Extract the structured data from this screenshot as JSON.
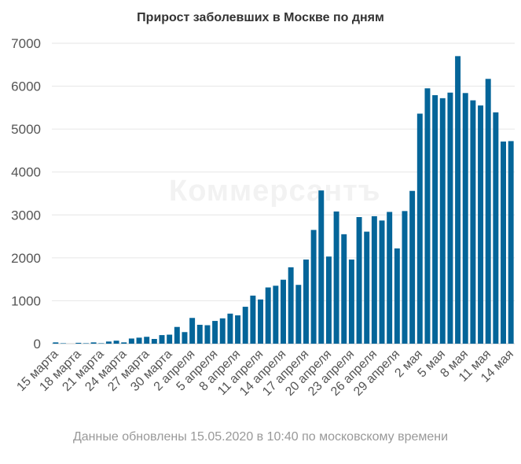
{
  "chart_data": {
    "type": "bar",
    "title": "Прирост заболевших в Москве по дням",
    "footnote": "Данные обновлены 15.05.2020 в 10:40 по московскому времени",
    "watermark": "Коммерсантъ",
    "bar_color": "#046599",
    "ylim": [
      0,
      7000
    ],
    "yticks": [
      0,
      1000,
      2000,
      3000,
      4000,
      5000,
      6000,
      7000
    ],
    "grid": true,
    "x": [
      "15 марта",
      "16 марта",
      "17 марта",
      "18 марта",
      "19 марта",
      "20 марта",
      "21 марта",
      "22 марта",
      "23 марта",
      "24 марта",
      "25 марта",
      "26 марта",
      "27 марта",
      "28 марта",
      "29 марта",
      "30 марта",
      "31 марта",
      "1 апреля",
      "2 апреля",
      "3 апреля",
      "4 апреля",
      "5 апреля",
      "6 апреля",
      "7 апреля",
      "8 апреля",
      "9 апреля",
      "10 апреля",
      "11 апреля",
      "12 апреля",
      "13 апреля",
      "14 апреля",
      "15 апреля",
      "16 апреля",
      "17 апреля",
      "18 апреля",
      "19 апреля",
      "20 апреля",
      "21 апреля",
      "22 апреля",
      "23 апреля",
      "24 апреля",
      "25 апреля",
      "26 апреля",
      "27 апреля",
      "28 апреля",
      "29 апреля",
      "30 апреля",
      "1 мая",
      "2 мая",
      "3 мая",
      "4 мая",
      "5 мая",
      "6 мая",
      "7 мая",
      "8 мая",
      "9 мая",
      "10 мая",
      "11 мая",
      "12 мая",
      "13 мая",
      "14 мая"
    ],
    "x_ticks_shown": [
      "15 марта",
      "18 марта",
      "21 марта",
      "24 марта",
      "27 марта",
      "30 марта",
      "2 апреля",
      "5 апреля",
      "8 апреля",
      "11 апреля",
      "14 апреля",
      "17 апреля",
      "20 апреля",
      "23 апреля",
      "26 апреля",
      "29 апреля",
      "2 мая",
      "5 мая",
      "8 мая",
      "11 мая",
      "14 мая"
    ],
    "values": [
      30,
      10,
      0,
      20,
      10,
      30,
      10,
      50,
      70,
      30,
      120,
      140,
      160,
      110,
      200,
      210,
      390,
      270,
      600,
      440,
      430,
      530,
      590,
      700,
      660,
      860,
      1120,
      1030,
      1310,
      1350,
      1490,
      1780,
      1370,
      1960,
      2650,
      3570,
      2030,
      3080,
      2550,
      1960,
      2950,
      2610,
      2970,
      2870,
      3070,
      2220,
      3090,
      3560,
      5360,
      5950,
      5790,
      5720,
      5850,
      6700,
      5840,
      5670,
      5550,
      6170,
      5390,
      4710,
      4720
    ]
  }
}
